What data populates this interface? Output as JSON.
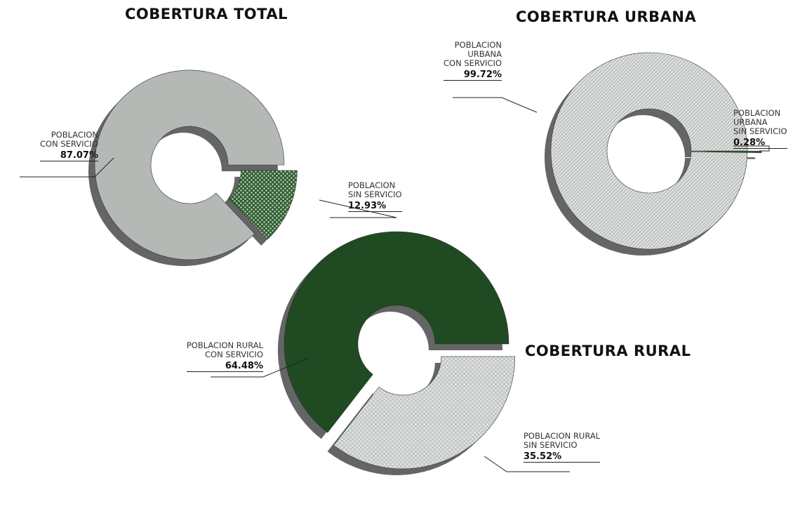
{
  "chart_data": [
    {
      "type": "pie",
      "donut": true,
      "title": "COBERTURA TOTAL",
      "categories": [
        "POBLACION\nCON SERVICIO",
        "POBLACION\nSIN SERVICIO"
      ],
      "values": [
        87.07,
        12.93
      ],
      "value_labels": [
        "87.07%",
        "12.93%"
      ],
      "colors": [
        "#b4b9b5",
        "#2f5f30"
      ],
      "fill_patterns": [
        "none",
        "dots"
      ],
      "explode": [
        false,
        true
      ]
    },
    {
      "type": "pie",
      "donut": true,
      "title": "COBERTURA URBANA",
      "categories": [
        "POBLACION\nURBANA\nCON SERVICIO",
        "POBLACION\nURBANA\nSIN SERVICIO"
      ],
      "values": [
        99.72,
        0.28
      ],
      "value_labels": [
        "99.72%",
        "0.28%"
      ],
      "colors": [
        "#bfc4c0",
        "#2f5f30"
      ],
      "fill_patterns": [
        "hatch",
        "none"
      ],
      "explode": [
        false,
        true
      ]
    },
    {
      "type": "pie",
      "donut": true,
      "title": "COBERTURA RURAL",
      "categories": [
        "POBLACION RURAL\nCON SERVICIO",
        "POBLACION RURAL\nSIN SERVICIO"
      ],
      "values": [
        64.48,
        35.52
      ],
      "value_labels": [
        "64.48%",
        "35.52%"
      ],
      "colors": [
        "#1f4a22",
        "#c5c9c6"
      ],
      "fill_patterns": [
        "none",
        "dots"
      ],
      "explode": [
        false,
        true
      ]
    }
  ]
}
